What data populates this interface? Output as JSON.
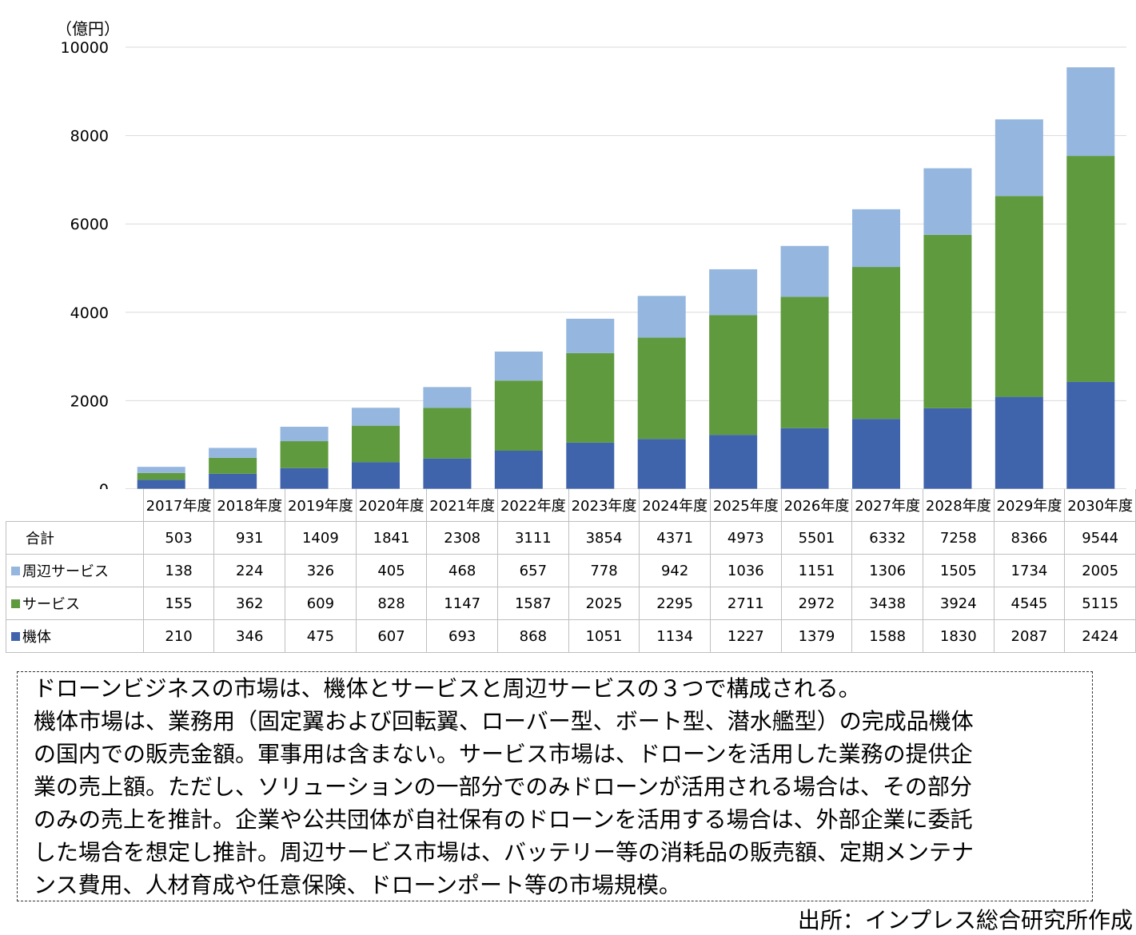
{
  "chart_data": {
    "type": "bar",
    "stacked": true,
    "unit_label": "（億円）",
    "ylim": [
      0,
      10000
    ],
    "yticks": [
      0,
      2000,
      4000,
      6000,
      8000,
      10000
    ],
    "grid": true,
    "categories": [
      "2017年度",
      "2018年度",
      "2019年度",
      "2020年度",
      "2021年度",
      "2022年度",
      "2023年度",
      "2024年度",
      "2025年度",
      "2026年度",
      "2027年度",
      "2028年度",
      "2029年度",
      "2030年度"
    ],
    "total_label": "合計",
    "totals": [
      503,
      931,
      1409,
      1841,
      2308,
      3111,
      3854,
      4371,
      4973,
      5501,
      6332,
      7258,
      8366,
      9544
    ],
    "series": [
      {
        "name": "周辺サービス",
        "color": "#95B6DE",
        "values": [
          138,
          224,
          326,
          405,
          468,
          657,
          778,
          942,
          1036,
          1151,
          1306,
          1505,
          1734,
          2005
        ]
      },
      {
        "name": "サービス",
        "color": "#5F9A3E",
        "values": [
          155,
          362,
          609,
          828,
          1147,
          1587,
          2025,
          2295,
          2711,
          2972,
          3438,
          3924,
          4545,
          5115
        ]
      },
      {
        "name": "機体",
        "color": "#3F64AC",
        "values": [
          210,
          346,
          475,
          607,
          693,
          868,
          1051,
          1134,
          1227,
          1379,
          1588,
          1830,
          2087,
          2424
        ]
      }
    ]
  },
  "note_lines": [
    "ドローンビジネスの市場は、機体とサービスと周辺サービスの３つで構成される。",
    "機体市場は、業務用（固定翼および回転翼、ローバー型、ボート型、潜水艦型）の完成品機体",
    "の国内での販売金額。軍事用は含まない。サービス市場は、ドローンを活用した業務の提供企",
    "業の売上額。ただし、ソリューションの一部分でのみドローンが活用される場合は、その部分",
    "のみの売上を推計。企業や公共団体が自社保有のドローンを活用する場合は、外部企業に委託",
    "した場合を想定し推計。周辺サービス市場は、バッテリー等の消耗品の販売額、定期メンテナ",
    "ンス費用、人材育成や任意保険、ドローンポート等の市場規模。"
  ],
  "source": "出所：インプレス総合研究所作成"
}
